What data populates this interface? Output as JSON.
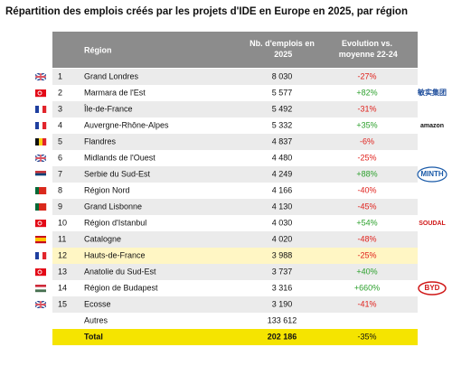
{
  "title": "Répartition des emplois créés par les projets d'IDE en Europe en 2025, par région",
  "table": {
    "header": [
      "Région",
      "Nb. d'emplois en 2025",
      "Evolution vs. moyenne 22-24"
    ],
    "rows": [
      {
        "rank": "1",
        "region": "Grand Londres",
        "jobs": "8 030",
        "evolution": "-27%",
        "flag": {
          "style": "cross",
          "colors": [
            "#1f3f8f",
            "#ffffff",
            "#cf1b2b"
          ]
        }
      },
      {
        "rank": "2",
        "region": "Marmara de l'Est",
        "jobs": "5 577",
        "evolution": "+82%",
        "flag": {
          "style": "h",
          "colors": [
            "#e30a17"
          ]
        }
      },
      {
        "rank": "3",
        "region": "Île-de-France",
        "jobs": "5 492",
        "evolution": "-31%",
        "flag": {
          "style": "v",
          "colors": [
            "#1f3f9f",
            "#ffffff",
            "#e1242b"
          ]
        }
      },
      {
        "rank": "4",
        "region": "Auvergne-Rhône-Alpes",
        "jobs": "5 332",
        "evolution": "+35%",
        "flag": {
          "style": "v",
          "colors": [
            "#1f3f9f",
            "#ffffff",
            "#e1242b"
          ]
        }
      },
      {
        "rank": "5",
        "region": "Flandres",
        "jobs": "4 837",
        "evolution": "-6%",
        "flag": {
          "style": "v",
          "colors": [
            "#111111",
            "#fbd116",
            "#e1242b"
          ]
        }
      },
      {
        "rank": "6",
        "region": "Midlands de l'Ouest",
        "jobs": "4 480",
        "evolution": "-25%",
        "flag": {
          "style": "cross",
          "colors": [
            "#1f3f8f",
            "#ffffff",
            "#cf1b2b"
          ]
        }
      },
      {
        "rank": "7",
        "region": "Serbie du Sud-Est",
        "jobs": "4 249",
        "evolution": "+88%",
        "flag": {
          "style": "h",
          "colors": [
            "#c6363c",
            "#0c4076",
            "#ffffff"
          ]
        }
      },
      {
        "rank": "8",
        "region": "Région Nord",
        "jobs": "4 166",
        "evolution": "-40%",
        "flag": {
          "style": "v",
          "colors": [
            "#046a38",
            "#da291c",
            "#da291c"
          ]
        }
      },
      {
        "rank": "9",
        "region": "Grand Lisbonne",
        "jobs": "4 130",
        "evolution": "-45%",
        "flag": {
          "style": "v",
          "colors": [
            "#046a38",
            "#da291c",
            "#da291c"
          ]
        }
      },
      {
        "rank": "10",
        "region": "Région d'Istanbul",
        "jobs": "4 030",
        "evolution": "+54%",
        "flag": {
          "style": "h",
          "colors": [
            "#e30a17"
          ]
        }
      },
      {
        "rank": "11",
        "region": "Catalogne",
        "jobs": "4 020",
        "evolution": "-48%",
        "flag": {
          "style": "h",
          "colors": [
            "#c60b1e",
            "#ffc400",
            "#ffc400",
            "#c60b1e"
          ]
        }
      },
      {
        "rank": "12",
        "region": "Hauts-de-France",
        "jobs": "3 988",
        "evolution": "-25%",
        "flag": {
          "style": "v",
          "colors": [
            "#1f3f9f",
            "#ffffff",
            "#e1242b"
          ]
        },
        "highlight": true
      },
      {
        "rank": "13",
        "region": "Anatolie du Sud-Est",
        "jobs": "3 737",
        "evolution": "+40%",
        "flag": {
          "style": "h",
          "colors": [
            "#e30a17"
          ]
        }
      },
      {
        "rank": "14",
        "region": "Région de Budapest",
        "jobs": "3 316",
        "evolution": "+660%",
        "flag": {
          "style": "h",
          "colors": [
            "#ce2939",
            "#ffffff",
            "#477050"
          ]
        }
      },
      {
        "rank": "15",
        "region": "Ecosse",
        "jobs": "3 190",
        "evolution": "-41%",
        "flag": {
          "style": "cross",
          "colors": [
            "#1f3f8f",
            "#ffffff",
            "#cf1b2b"
          ]
        }
      }
    ],
    "others": {
      "label": "Autres",
      "jobs": "133 612"
    },
    "total": {
      "label": "Total",
      "jobs": "202 186",
      "evolution": "-35%"
    }
  },
  "logos": [
    {
      "row": 1,
      "text": "敏实集团",
      "color": "#1a4a9a"
    },
    {
      "row": 3,
      "text": "amazon",
      "color": "#111111"
    },
    {
      "row": 6,
      "text": "MINTH",
      "color": "#1a5aa8"
    },
    {
      "row": 9,
      "text": "SOUDAL",
      "color": "#d01818"
    },
    {
      "row": 13,
      "text": "BYD",
      "color": "#d01818"
    }
  ]
}
